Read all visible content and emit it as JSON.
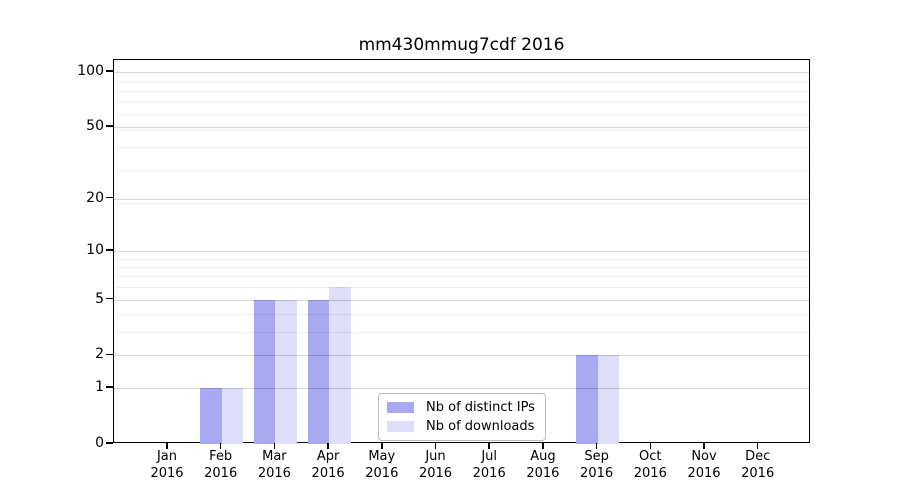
{
  "chart_data": {
    "type": "bar",
    "title": "mm430mmug7cdf 2016",
    "categories": [
      "Jan",
      "Feb",
      "Mar",
      "Apr",
      "May",
      "Jun",
      "Jul",
      "Aug",
      "Sep",
      "Oct",
      "Nov",
      "Dec"
    ],
    "x_tick_second_line": "2016",
    "series": [
      {
        "name": "Nb of distinct IPs",
        "color": "#a9a9f1",
        "values": [
          0,
          1,
          5,
          5,
          0,
          0,
          0,
          0,
          2,
          0,
          0,
          0
        ]
      },
      {
        "name": "Nb of downloads",
        "color": "#dedef8",
        "values": [
          0,
          1,
          5,
          6,
          0,
          0,
          0,
          0,
          2,
          0,
          0,
          0
        ]
      }
    ],
    "y_axis": {
      "scale": "log10(1+v)",
      "tick_labels": [
        0,
        1,
        2,
        5,
        10,
        20,
        50,
        100
      ],
      "minor_gridline_values": [
        3,
        4,
        6,
        7,
        8,
        9,
        19,
        29,
        39,
        49,
        59,
        69,
        79,
        89
      ],
      "min": 0,
      "max": 117
    },
    "xlabel": "",
    "ylabel": "",
    "grid": "horizontal major+minor, drawn over bars",
    "legend": {
      "position": "inside-bottom-center",
      "entries": [
        "Nb of distinct IPs",
        "Nb of downloads"
      ]
    },
    "colors": {
      "background": "#ffffff",
      "frame": "#000000",
      "major_grid": "#d6d6d6",
      "minor_grid": "#efefef",
      "bar_distinct_ips": "#a9a9f1",
      "bar_downloads": "#dedef8"
    }
  }
}
